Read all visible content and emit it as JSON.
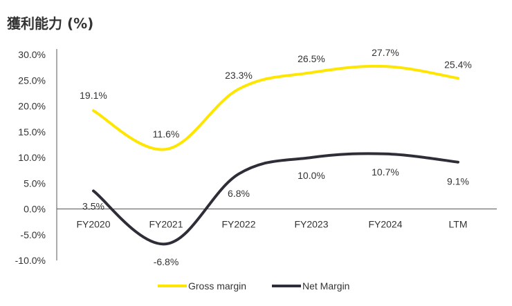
{
  "chart_data": {
    "type": "line",
    "title": "獲利能力 (%)",
    "categories": [
      "FY2020",
      "FY2021",
      "FY2022",
      "FY2023",
      "FY2024",
      "LTM"
    ],
    "ylim": [
      -10,
      30
    ],
    "yticks": [
      "30.0%",
      "25.0%",
      "20.0%",
      "15.0%",
      "10.0%",
      "5.0%",
      "0.0%",
      "-5.0%",
      "-10.0%"
    ],
    "ytick_values": [
      30,
      25,
      20,
      15,
      10,
      5,
      0,
      -5,
      -10
    ],
    "series": [
      {
        "name": "Gross margin",
        "color": "#ffe600",
        "values": [
          19.1,
          11.6,
          23.3,
          26.5,
          27.7,
          25.4
        ],
        "labels": [
          "19.1%",
          "11.6%",
          "23.3%",
          "26.5%",
          "27.7%",
          "25.4%"
        ]
      },
      {
        "name": "Net Margin",
        "color": "#2e2e38",
        "values": [
          3.5,
          -6.8,
          6.8,
          10.0,
          10.7,
          9.1
        ],
        "labels": [
          "3.5%",
          "-6.8%",
          "6.8%",
          "10.0%",
          "10.7%",
          "9.1%"
        ]
      }
    ],
    "legend": [
      "Gross margin",
      "Net Margin"
    ]
  }
}
